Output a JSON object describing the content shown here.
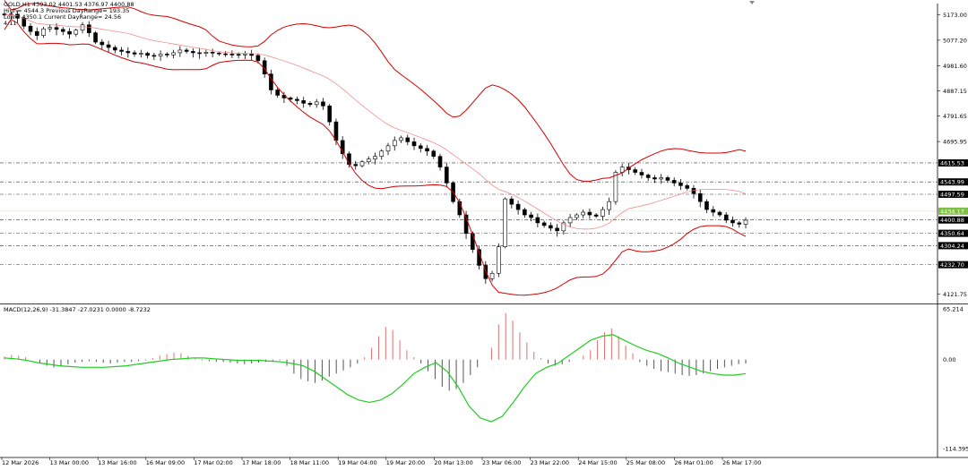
{
  "header": {
    "symbol_line": "GOLD,H1  4393.02 4401.53 4376.97 4400.88",
    "high_line": "High= 4544.3 Previous DayRange= 193.35",
    "low_line": "Low= 4350.1 Current DayRange= 24.56",
    "extra_line": "4:11"
  },
  "chart_data": [
    {
      "type": "candlestick",
      "symbol": "GOLD",
      "timeframe": "H1",
      "ohlc": {
        "open": 4393.02,
        "high": 4401.53,
        "low": 4376.97,
        "close": 4400.88
      },
      "price_axis": {
        "ticks": [
          "5173.00",
          "5077.20",
          "4981.60",
          "4887.15",
          "4791.65",
          "4695.95",
          "4121.75"
        ],
        "range": [
          4090,
          5215
        ]
      },
      "level_labels": [
        {
          "label": "4615.53",
          "color": "#000000"
        },
        {
          "label": "4543.99",
          "color": "#000000"
        },
        {
          "label": "4497.59",
          "color": "#000000"
        },
        {
          "label": "4434.17",
          "color": "#7fbf3f"
        },
        {
          "label": "4400.88",
          "color": "#000000"
        },
        {
          "label": "4350.64",
          "color": "#000000"
        },
        {
          "label": "4304.24",
          "color": "#000000"
        },
        {
          "label": "4232.70",
          "color": "#000000"
        }
      ],
      "x_labels": [
        "12 Mar 2026",
        "13 Mar 00:00",
        "13 Mar 16:00",
        "16 Mar 09:00",
        "17 Mar 02:00",
        "17 Mar 18:00",
        "18 Mar 11:00",
        "19 Mar 04:00",
        "19 Mar 20:00",
        "20 Mar 13:00",
        "23 Mar 06:00",
        "23 Mar 22:00",
        "24 Mar 15:00",
        "25 Mar 08:00",
        "26 Mar 01:00",
        "26 Mar 17:00"
      ],
      "indicators": [
        "Bollinger Bands",
        "Moving Average"
      ],
      "closes": [
        5172,
        5175,
        5160,
        5130,
        5110,
        5095,
        5120,
        5125,
        5118,
        5110,
        5100,
        5115,
        5135,
        5105,
        5070,
        5060,
        5050,
        5040,
        5035,
        5030,
        5025,
        5028,
        5020,
        5018,
        5025,
        5022,
        5030,
        5040,
        5035,
        5030,
        5028,
        5032,
        5029,
        5026,
        5025,
        5024,
        5022,
        5026,
        5020,
        5000,
        4950,
        4890,
        4870,
        4860,
        4855,
        4850,
        4840,
        4835,
        4845,
        4830,
        4770,
        4700,
        4650,
        4610,
        4605,
        4620,
        4630,
        4640,
        4660,
        4680,
        4700,
        4710,
        4695,
        4680,
        4670,
        4660,
        4640,
        4600,
        4540,
        4470,
        4420,
        4350,
        4290,
        4230,
        4180,
        4200,
        4300,
        4480,
        4460,
        4440,
        4420,
        4410,
        4390,
        4380,
        4370,
        4360,
        4390,
        4410,
        4420,
        4430,
        4420,
        4415,
        4440,
        4470,
        4580,
        4600,
        4590,
        4580,
        4570,
        4560,
        4555,
        4560,
        4550,
        4540,
        4530,
        4520,
        4500,
        4470,
        4440,
        4430,
        4420,
        4400,
        4390,
        4385,
        4400
      ]
    },
    {
      "type": "macd",
      "label": "MACD(12,26,9) -31.3847 -27.0231 0.0000 -8.7232",
      "params": [
        12,
        26,
        9
      ],
      "values": [
        -31.3847,
        -27.0231,
        0.0,
        -8.7232
      ],
      "y_ticks": [
        "65.214",
        "0.00",
        "-114.3959"
      ],
      "ylim": [
        -114.3959,
        65.214
      ],
      "histogram": [
        4,
        6,
        5,
        3,
        0,
        -4,
        -8,
        -10,
        -9,
        -6,
        -4,
        -3,
        -2,
        -3,
        -4,
        -5,
        -4,
        -3,
        -3,
        -2,
        -1,
        2,
        5,
        7,
        9,
        8,
        5,
        2,
        -1,
        -2,
        -3,
        -3,
        -4,
        -5,
        -6,
        -5,
        -4,
        -3,
        -2,
        -1,
        -8,
        -18,
        -25,
        -28,
        -30,
        -27,
        -22,
        -18,
        -14,
        -10,
        -5,
        3,
        15,
        30,
        42,
        38,
        25,
        12,
        3,
        -5,
        -15,
        -25,
        -35,
        -40,
        -38,
        -30,
        -20,
        -10,
        0,
        15,
        45,
        60,
        50,
        35,
        22,
        10,
        2,
        -5,
        -8,
        -6,
        -3,
        0,
        5,
        12,
        25,
        35,
        40,
        30,
        18,
        8,
        -3,
        -8,
        -12,
        -15,
        -16,
        -18,
        -20,
        -21,
        -20,
        -18,
        -15,
        -12,
        -10,
        -8,
        -6,
        -5
      ],
      "signal": [
        2,
        1,
        -1,
        -4,
        -6,
        -8,
        -9,
        -10,
        -10,
        -10,
        -9,
        -8,
        -6,
        -4,
        -2,
        0,
        1,
        2,
        2,
        1,
        0,
        -1,
        -1,
        -1,
        -2,
        -3,
        -5,
        -8,
        -15,
        -25,
        -35,
        -45,
        -52,
        -55,
        -52,
        -44,
        -32,
        -18,
        -10,
        -4,
        -15,
        -35,
        -60,
        -75,
        -80,
        -73,
        -55,
        -35,
        -18,
        -10,
        -5,
        5,
        15,
        25,
        30,
        32,
        25,
        18,
        12,
        8,
        2,
        -5,
        -10,
        -15,
        -18,
        -20,
        -20,
        -18
      ]
    }
  ]
}
